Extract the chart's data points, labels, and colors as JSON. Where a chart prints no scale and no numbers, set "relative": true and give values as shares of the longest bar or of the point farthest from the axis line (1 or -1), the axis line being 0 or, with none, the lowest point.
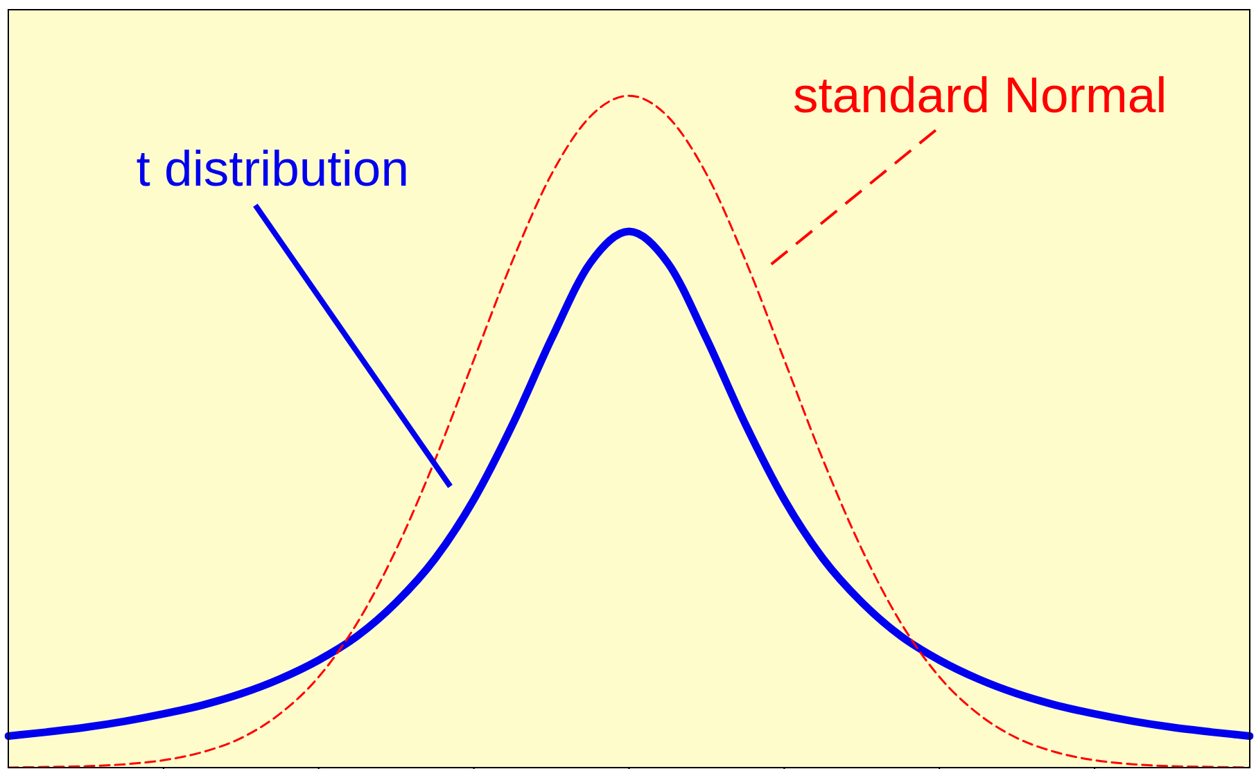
{
  "chart_data": {
    "type": "line",
    "relative": true,
    "categories": [
      null,
      null,
      null,
      null,
      null,
      null,
      null,
      null,
      null,
      null,
      null,
      null,
      null,
      null,
      null,
      null,
      null,
      null,
      null,
      null,
      null,
      null,
      null,
      null,
      null,
      null,
      null,
      null,
      null,
      null,
      null,
      null,
      null
    ],
    "series": [
      {
        "name": "t distribution",
        "color": "#0000ee",
        "line_style": "solid",
        "values": [
          0.047,
          0.053,
          0.06,
          0.069,
          0.08,
          0.093,
          0.11,
          0.132,
          0.16,
          0.196,
          0.246,
          0.311,
          0.399,
          0.511,
          0.638,
          0.751,
          0.798,
          0.751,
          0.638,
          0.511,
          0.399,
          0.311,
          0.246,
          0.196,
          0.16,
          0.132,
          0.11,
          0.093,
          0.08,
          0.069,
          0.06,
          0.053,
          0.047
        ]
      },
      {
        "name": "standard Normal",
        "color": "#ff0000",
        "line_style": "dashed",
        "values": [
          0.0,
          0.001,
          0.002,
          0.005,
          0.011,
          0.023,
          0.044,
          0.08,
          0.135,
          0.216,
          0.325,
          0.458,
          0.607,
          0.755,
          0.883,
          0.969,
          1.0,
          0.969,
          0.883,
          0.755,
          0.607,
          0.458,
          0.325,
          0.216,
          0.135,
          0.08,
          0.044,
          0.023,
          0.011,
          0.005,
          0.002,
          0.001,
          0.0
        ]
      }
    ],
    "legend": false,
    "grid": false,
    "marker": "none"
  }
}
